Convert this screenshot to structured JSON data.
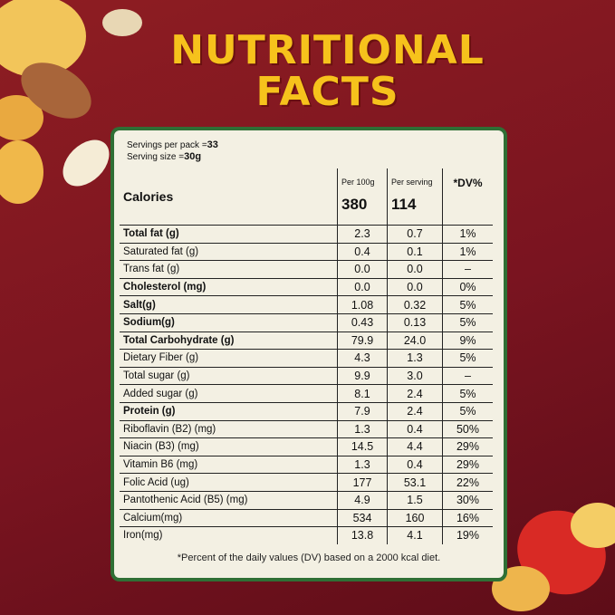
{
  "header": {
    "title_line_1": "NUTRITIONAL",
    "title_line_2": "FACTS"
  },
  "serving": {
    "servings_per_pack_label": "Servings per pack =",
    "servings_per_pack": "33",
    "serving_size_label": "Serving size =",
    "serving_size": "30g"
  },
  "table": {
    "calories_label": "Calories",
    "columns": [
      "Per 100g",
      "Per serving",
      "*DV%"
    ],
    "calories": [
      "380",
      "114"
    ],
    "rows": [
      [
        "Total fat (g)",
        "2.3",
        "0.7",
        "1%"
      ],
      [
        "Saturated fat (g)",
        "0.4",
        "0.1",
        "1%"
      ],
      [
        "Trans fat (g)",
        "0.0",
        "0.0",
        "–"
      ],
      [
        "Cholesterol (mg)",
        "0.0",
        "0.0",
        "0%"
      ],
      [
        "Salt(g)",
        "1.08",
        "0.32",
        "5%"
      ],
      [
        "Sodium(g)",
        "0.43",
        "0.13",
        "5%"
      ],
      [
        "Total Carbohydrate (g)",
        "79.9",
        "24.0",
        "9%"
      ],
      [
        "Dietary Fiber (g)",
        "4.3",
        "1.3",
        "5%"
      ],
      [
        "Total sugar (g)",
        "9.9",
        "3.0",
        "–"
      ],
      [
        "Added sugar (g)",
        "8.1",
        "2.4",
        "5%"
      ],
      [
        "Protein (g)",
        "7.9",
        "2.4",
        "5%"
      ],
      [
        "Riboflavin (B2) (mg)",
        "1.3",
        "0.4",
        "50%"
      ],
      [
        "Niacin (B3) (mg)",
        "14.5",
        "4.4",
        "29%"
      ],
      [
        "Vitamin B6 (mg)",
        "1.3",
        "0.4",
        "29%"
      ],
      [
        "Folic Acid (ug)",
        "177",
        "53.1",
        "22%"
      ],
      [
        "Pantothenic Acid (B5) (mg)",
        "4.9",
        "1.5",
        "30%"
      ],
      [
        "Calcium(mg)",
        "534",
        "160",
        "16%"
      ],
      [
        "Iron(mg)",
        "13.8",
        "4.1",
        "19%"
      ]
    ]
  },
  "footnote": "*Percent of the daily values (DV) based on a 2000 kcal diet."
}
